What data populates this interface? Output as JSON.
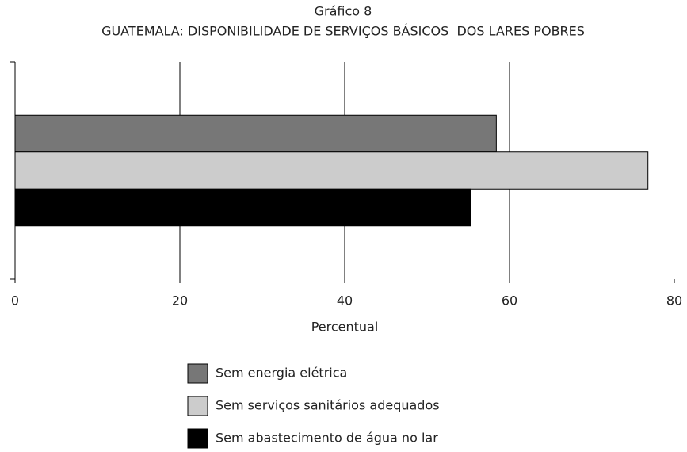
{
  "chart_data": {
    "type": "bar",
    "orientation": "horizontal",
    "title": "Gráfico 8",
    "subtitle": "GUATEMALA: DISPONIBILIDADE DE SERVIÇOS BÁSICOS  DOS LARES POBRES",
    "x_label": "Percentual",
    "categories": [
      null
    ],
    "series": [
      {
        "name": "Sem energia elétrica",
        "color": "#777777",
        "values": [
          58.4
        ]
      },
      {
        "name": "Sem serviços sanitários adequados",
        "color": "#cccccc",
        "values": [
          76.8
        ]
      },
      {
        "name": "Sem abastecimento de água no lar",
        "color": "#000000",
        "values": [
          55.3
        ]
      }
    ],
    "xlim": [
      0,
      80
    ],
    "xticks": [
      0,
      20,
      40,
      60,
      80
    ],
    "grid": true,
    "legend": "bottom"
  }
}
